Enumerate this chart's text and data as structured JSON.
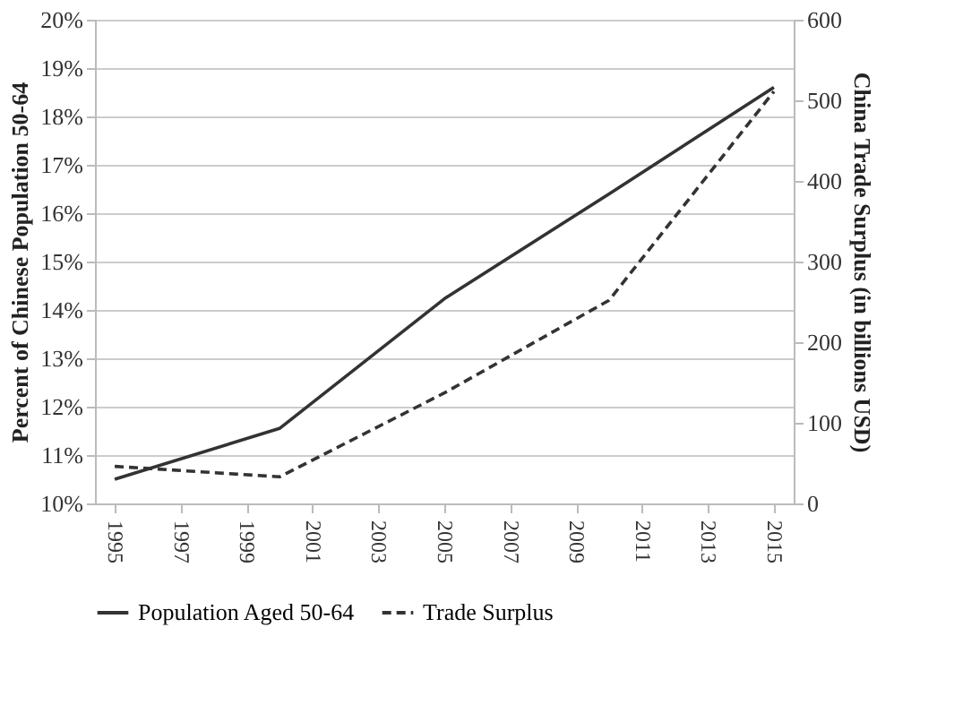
{
  "chart_data": {
    "type": "line",
    "x": [
      1995,
      2000,
      2005,
      2010,
      2015
    ],
    "xlim": [
      1994.4,
      2015.6
    ],
    "xticks": [
      1995,
      1997,
      1999,
      2001,
      2003,
      2005,
      2007,
      2009,
      2011,
      2013,
      2015
    ],
    "ylim": [
      10,
      20
    ],
    "yticks": [
      {
        "value": 10,
        "label": "10%"
      },
      {
        "value": 11,
        "label": "11%"
      },
      {
        "value": 12,
        "label": "12%"
      },
      {
        "value": 13,
        "label": "13%"
      },
      {
        "value": 14,
        "label": "14%"
      },
      {
        "value": 15,
        "label": "15%"
      },
      {
        "value": 16,
        "label": "16%"
      },
      {
        "value": 17,
        "label": "17%"
      },
      {
        "value": 18,
        "label": "18%"
      },
      {
        "value": 19,
        "label": "19%"
      },
      {
        "value": 20,
        "label": "20%"
      }
    ],
    "y2lim": [
      0,
      600
    ],
    "y2ticks": [
      0,
      100,
      200,
      300,
      400,
      500,
      600
    ],
    "ylabel": "Percent of Chinese Population 50-64",
    "y2label": "China Trade Surplus (in billions USD)",
    "grid": "y",
    "legend": "bottom",
    "marker": "none",
    "series": [
      {
        "name": "Population Aged 50-64",
        "color": "#333333",
        "line_style": "solid",
        "values": [
          10.5,
          11.55,
          14.23,
          16.4,
          18.6
        ]
      },
      {
        "name": "Trade Surplus",
        "color": "#333333",
        "line_style": "dashed",
        "axis": "y2",
        "values": [
          46,
          33,
          137,
          252,
          511
        ]
      }
    ]
  }
}
